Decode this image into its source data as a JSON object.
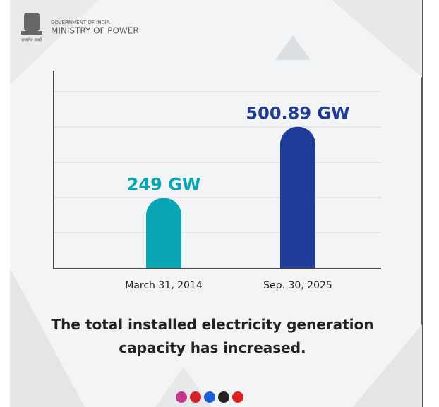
{
  "header": {
    "emblem_motto": "सत्यमेव जयते",
    "government": "GOVERNMENT OF INDIA",
    "ministry": "MINISTRY OF POWER"
  },
  "chart_data": {
    "type": "bar",
    "categories": [
      "March 31, 2014",
      "Sep. 30, 2025"
    ],
    "values": [
      249,
      500.89
    ],
    "value_labels": [
      "249 GW",
      "500.89 GW"
    ],
    "colors": [
      "#0aa5b5",
      "#1f3c9b"
    ],
    "ylim": [
      0,
      700
    ],
    "caption": "The total installed electricity generation capacity has increased."
  }
}
